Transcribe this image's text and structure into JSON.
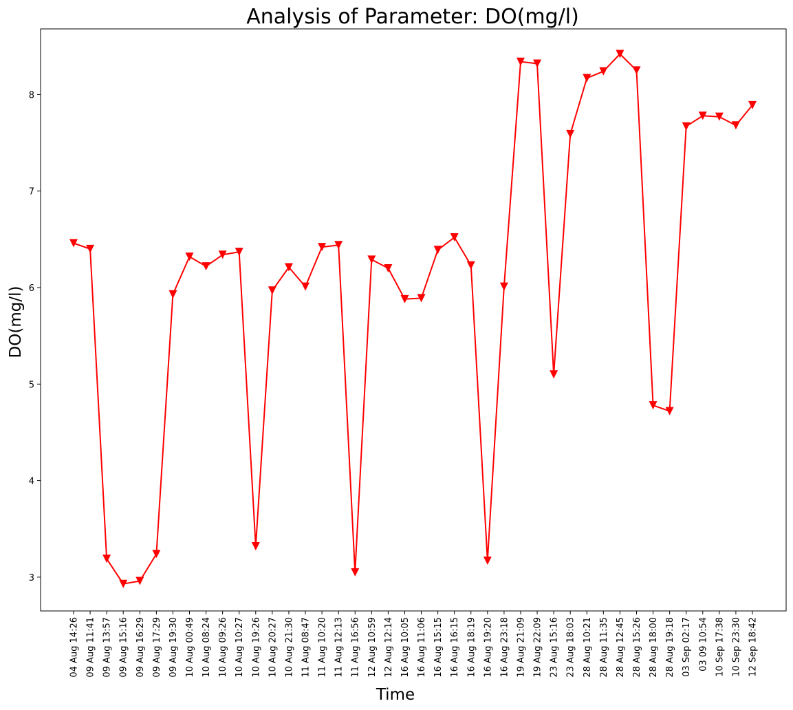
{
  "chart_data": {
    "type": "line",
    "title": "Analysis of Parameter: DO(mg/l)",
    "xlabel": "Time",
    "ylabel": "DO(mg/l)",
    "ylim": [
      2.65,
      8.68
    ],
    "yticks": [
      3,
      4,
      5,
      6,
      7,
      8
    ],
    "grid": false,
    "series": [
      {
        "name": "DO(mg/l)",
        "color": "#ff0000",
        "marker": "triangle-down",
        "categories": [
          "04 Aug 14:26",
          "09 Aug 11:41",
          "09 Aug 13:57",
          "09 Aug 15:16",
          "09 Aug 16:29",
          "09 Aug 17:29",
          "09 Aug 19:30",
          "10 Aug 00:49",
          "10 Aug 08:24",
          "10 Aug 09:26",
          "10 Aug 10:27",
          "10 Aug 19:26",
          "10 Aug 20:27",
          "10 Aug 21:30",
          "11 Aug 08:47",
          "11 Aug 10:20",
          "11 Aug 12:13",
          "11 Aug 16:56",
          "12 Aug 10:59",
          "12 Aug 12:14",
          "16 Aug 10:05",
          "16 Aug 11:06",
          "16 Aug 15:15",
          "16 Aug 16:15",
          "16 Aug 18:19",
          "16 Aug 19:20",
          "16 Aug 23:18",
          "19 Aug 21:09",
          "19 Aug 22:09",
          "23 Aug 15:16",
          "23 Aug 18:03",
          "28 Aug 10:21",
          "28 Aug 11:35",
          "28 Aug 12:45",
          "28 Aug 15:26",
          "28 Aug 18:00",
          "28 Aug 19:18",
          "03 Sep 02:17",
          "03 09 10:54",
          "10 Sep 17:38",
          "10 Sep 23:30",
          "12 Sep 18:42"
        ],
        "values": [
          6.46,
          6.4,
          3.19,
          2.93,
          2.96,
          3.24,
          5.93,
          6.32,
          6.22,
          6.34,
          6.37,
          3.32,
          5.97,
          6.21,
          6.01,
          6.42,
          6.44,
          3.05,
          6.29,
          6.2,
          5.88,
          5.89,
          6.39,
          6.52,
          6.23,
          3.17,
          6.01,
          8.34,
          8.32,
          5.1,
          7.59,
          8.17,
          8.24,
          8.42,
          8.25,
          4.78,
          4.72,
          7.67,
          7.78,
          7.77,
          7.68,
          7.89
        ]
      }
    ]
  }
}
